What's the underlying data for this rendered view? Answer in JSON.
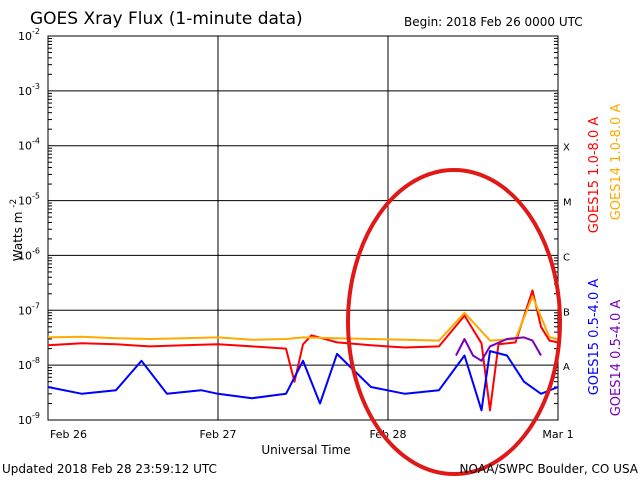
{
  "chart_data": {
    "type": "line",
    "title": "GOES Xray Flux (1-minute data)",
    "begin": "Begin:  2018 Feb 26 0000 UTC",
    "xlabel": "Universal Time",
    "ylabel_main": "Watts m",
    "ylabel_exp": "-2",
    "x_ticks": [
      "Feb 26",
      "Feb 27",
      "Feb 28",
      "Mar 1"
    ],
    "xlim": [
      0,
      3
    ],
    "x_unit": "days since Feb 26 00:00 UTC",
    "y_scale": "log",
    "ylim": [
      1e-09,
      0.01
    ],
    "y_tick_exponents": [
      "-2",
      "-3",
      "-4",
      "-5",
      "-6",
      "-7",
      "-8",
      "-9"
    ],
    "flare_classes": [
      {
        "label": "X",
        "level": 0.0001
      },
      {
        "label": "M",
        "level": 1e-05
      },
      {
        "label": "C",
        "level": 1e-06
      },
      {
        "label": "B",
        "level": 1e-07
      },
      {
        "label": "A",
        "level": 1e-08
      }
    ],
    "grid": true,
    "series": [
      {
        "name": "GOES15 1.0-8.0 A",
        "color": "#ff0000",
        "x": [
          0,
          0.2,
          0.4,
          0.6,
          0.8,
          1.0,
          1.2,
          1.4,
          1.45,
          1.5,
          1.55,
          1.7,
          1.9,
          2.1,
          2.3,
          2.45,
          2.55,
          2.6,
          2.65,
          2.75,
          2.85,
          2.9,
          2.95,
          3.0
        ],
        "y": [
          2.3e-08,
          2.5e-08,
          2.4e-08,
          2.2e-08,
          2.3e-08,
          2.4e-08,
          2.2e-08,
          2e-08,
          5e-09,
          2.4e-08,
          3.5e-08,
          2.6e-08,
          2.3e-08,
          2.1e-08,
          2.2e-08,
          8e-08,
          2.5e-08,
          1.5e-09,
          2.4e-08,
          2.6e-08,
          2.3e-07,
          5e-08,
          2.8e-08,
          2.6e-08
        ]
      },
      {
        "name": "GOES14 1.0-8.0 A",
        "color": "#ffaa00",
        "x": [
          0,
          0.2,
          0.4,
          0.6,
          0.8,
          1.0,
          1.2,
          1.4,
          1.5,
          1.7,
          1.9,
          2.1,
          2.3,
          2.45,
          2.6,
          2.75,
          2.85,
          2.95,
          3.0
        ],
        "y": [
          3.2e-08,
          3.3e-08,
          3.1e-08,
          3e-08,
          3.1e-08,
          3.2e-08,
          2.9e-08,
          3e-08,
          3.2e-08,
          3.1e-08,
          3e-08,
          2.9e-08,
          2.8e-08,
          9e-08,
          2.8e-08,
          3e-08,
          1.8e-07,
          3.2e-08,
          3e-08
        ]
      },
      {
        "name": "GOES15 0.5-4.0 A",
        "color": "#0000ff",
        "x": [
          0,
          0.2,
          0.4,
          0.55,
          0.7,
          0.9,
          1.0,
          1.2,
          1.4,
          1.5,
          1.6,
          1.7,
          1.8,
          1.9,
          2.1,
          2.3,
          2.45,
          2.55,
          2.6,
          2.7,
          2.8,
          2.9,
          3.0
        ],
        "y": [
          4e-09,
          3e-09,
          3.5e-09,
          1.2e-08,
          3e-09,
          3.5e-09,
          3e-09,
          2.5e-09,
          3e-09,
          1.2e-08,
          2e-09,
          1.6e-08,
          8e-09,
          4e-09,
          3e-09,
          3.5e-09,
          1.5e-08,
          1.5e-09,
          1.8e-08,
          1.5e-08,
          5e-09,
          3e-09,
          4e-09
        ]
      },
      {
        "name": "GOES14 0.5-4.0 A",
        "color": "#7700bb",
        "x": [
          2.4,
          2.45,
          2.5,
          2.55,
          2.6,
          2.7,
          2.8,
          2.85,
          2.9
        ],
        "y": [
          1.5e-08,
          3e-08,
          1.5e-08,
          1.2e-08,
          2.2e-08,
          3e-08,
          3.2e-08,
          2.8e-08,
          1.5e-08
        ]
      }
    ],
    "annotation": "red ellipse circling Feb 28 flare activity"
  },
  "footer": {
    "updated": "Updated 2018 Feb 28 23:59:12 UTC",
    "credit": "NOAA/SWPC Boulder, CO USA"
  }
}
